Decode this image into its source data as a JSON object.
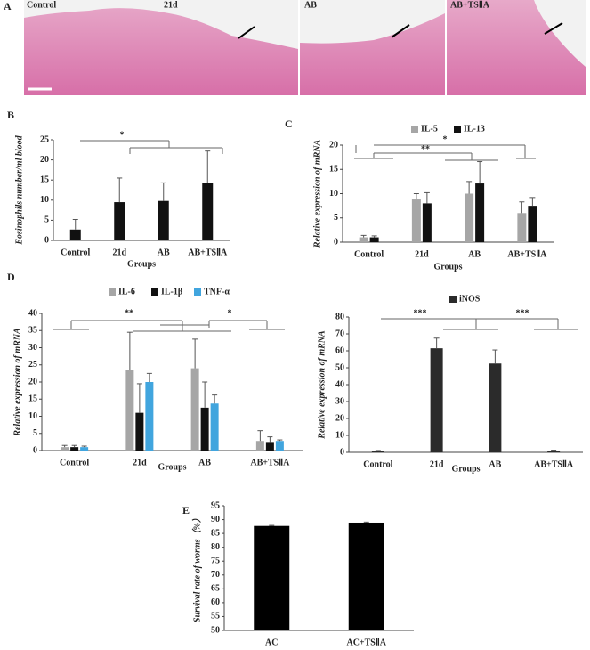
{
  "figure": {
    "panel_labels": [
      "A",
      "B",
      "C",
      "D",
      "E"
    ]
  },
  "histology": {
    "labels": [
      "Control",
      "21d",
      "AB",
      "AB+TSⅡA"
    ]
  },
  "chart_data": [
    {
      "type": "bar",
      "x_label": "Groups",
      "y_label": "Eosinophils number/ml blood",
      "categories": [
        "Control",
        "21d",
        "AB",
        "AB+TSⅡA"
      ],
      "series": [
        {
          "color": "#111111",
          "values": [
            2.7,
            9.5,
            9.8,
            14.2
          ],
          "errors": [
            2.5,
            6,
            4.5,
            8
          ]
        }
      ],
      "ylim": [
        0,
        25
      ],
      "yticks": [
        0,
        5,
        10,
        15,
        20,
        25
      ],
      "annotations": [
        "*"
      ]
    },
    {
      "type": "bar",
      "x_label": "Groups",
      "y_label": "Relative expression of mRNA",
      "categories": [
        "Control",
        "21d",
        "AB",
        "AB+TSⅡA"
      ],
      "series": [
        {
          "name": "IL-5",
          "color": "#a6a6a6",
          "values": [
            1.0,
            8.8,
            10,
            6
          ],
          "errors": [
            0.4,
            1.2,
            2.5,
            2.3
          ]
        },
        {
          "name": "IL-13",
          "color": "#111111",
          "values": [
            1.0,
            8,
            12.1,
            7.5
          ],
          "errors": [
            0.3,
            2.2,
            4.5,
            1.7
          ]
        }
      ],
      "ylim": [
        0,
        20
      ],
      "yticks": [
        0,
        5,
        10,
        15,
        20
      ],
      "annotations": [
        "**",
        "*"
      ]
    },
    {
      "type": "bar",
      "x_label": "Groups",
      "y_label": "Relative expression of mRNA",
      "categories": [
        "Control",
        "21d",
        "AB",
        "AB+TSⅡA"
      ],
      "series": [
        {
          "name": "IL-6",
          "color": "#a6a6a6",
          "values": [
            1,
            23.5,
            24,
            2.8
          ],
          "errors": [
            0.5,
            11,
            8.5,
            3
          ]
        },
        {
          "name": "IL-1β",
          "color": "#111111",
          "values": [
            1,
            11,
            12.5,
            2.5
          ],
          "errors": [
            0.5,
            8.5,
            7.5,
            1.5
          ]
        },
        {
          "name": "TNF-α",
          "color": "#41a5de",
          "values": [
            1,
            20,
            13.7,
            2.8
          ],
          "errors": [
            0.3,
            2.5,
            2.5,
            0.3
          ]
        }
      ],
      "ylim": [
        0,
        40
      ],
      "yticks": [
        0,
        5,
        10,
        15,
        20,
        25,
        30,
        35,
        40
      ],
      "annotations": [
        "**",
        "*"
      ]
    },
    {
      "type": "bar",
      "x_label": "Groups",
      "y_label": "Relative expression of mRNA",
      "categories": [
        "Control",
        "21d",
        "AB",
        "AB+TSⅡA"
      ],
      "series": [
        {
          "name": "iNOS",
          "color": "#2b2b2b",
          "values": [
            0.8,
            61.5,
            52.5,
            1.0
          ],
          "errors": [
            0.3,
            6,
            8,
            0.3
          ]
        }
      ],
      "ylim": [
        0,
        80
      ],
      "yticks": [
        0,
        10,
        20,
        30,
        40,
        50,
        60,
        70,
        80
      ],
      "annotations": [
        "***",
        "***"
      ]
    },
    {
      "type": "bar",
      "y_label": "Survival rate of worms（%）",
      "categories": [
        "AC",
        "AC+TSⅡA"
      ],
      "series": [
        {
          "color": "#000000",
          "values": [
            87.7,
            88.9
          ],
          "errors": [
            0.2,
            0.2
          ]
        }
      ],
      "ylim": [
        50,
        95
      ],
      "yticks": [
        50,
        55,
        60,
        65,
        70,
        75,
        80,
        85,
        90,
        95
      ]
    }
  ]
}
